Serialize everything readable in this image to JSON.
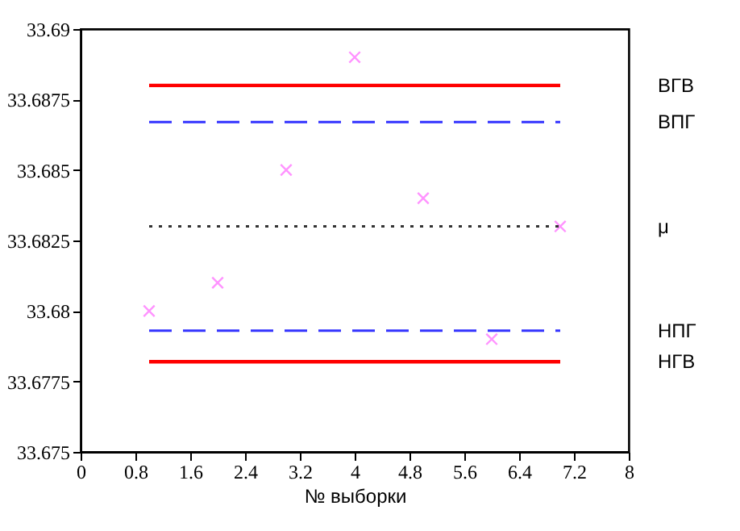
{
  "chart_data": {
    "type": "scatter",
    "xlabel": "№ выборки",
    "grid": false,
    "xlim": [
      0,
      8
    ],
    "xticks": [
      0,
      0.8,
      1.6,
      2.4,
      3.2,
      4,
      4.8,
      5.6,
      6.4,
      7.2,
      8
    ],
    "ylim": [
      33.675,
      33.69
    ],
    "yticks": [
      33.675,
      33.6775,
      33.68,
      33.6825,
      33.685,
      33.6875,
      33.69
    ],
    "series": [
      {
        "marker": "cross",
        "color": "#ff66ff",
        "x": [
          1,
          2,
          3,
          4,
          5,
          6,
          7
        ],
        "values": [
          33.68,
          33.681,
          33.685,
          33.689,
          33.684,
          33.679,
          33.683
        ]
      },
      {
        "type": "line",
        "name": "ВГВ",
        "color": "#ff0000",
        "line_style": "solid",
        "x": [
          1,
          7
        ],
        "values": [
          33.688,
          33.688
        ]
      },
      {
        "type": "line",
        "name": "ВПГ",
        "color": "#3333ff",
        "line_style": "dashed",
        "x": [
          1,
          7
        ],
        "values": [
          33.6867,
          33.6867
        ]
      },
      {
        "type": "line",
        "name": "μ",
        "color": "#333333",
        "line_style": "dotted",
        "x": [
          1,
          7
        ],
        "values": [
          33.683,
          33.683
        ]
      },
      {
        "type": "line",
        "name": "НПГ",
        "color": "#3333ff",
        "line_style": "dashed",
        "x": [
          1,
          7
        ],
        "values": [
          33.6793,
          33.6793
        ]
      },
      {
        "type": "line",
        "name": "НГВ",
        "color": "#ff0000",
        "line_style": "solid",
        "x": [
          1,
          7
        ],
        "values": [
          33.6782,
          33.6782
        ]
      }
    ]
  }
}
